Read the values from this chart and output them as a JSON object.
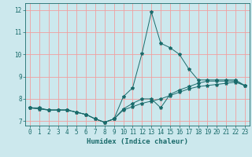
{
  "title": "",
  "xlabel": "Humidex (Indice chaleur)",
  "bg_color": "#cce8ed",
  "grid_color": "#f0a0a0",
  "line_color": "#1a6b6b",
  "xlim": [
    -0.5,
    23.5
  ],
  "ylim": [
    6.8,
    12.3
  ],
  "xticks": [
    0,
    1,
    2,
    3,
    4,
    5,
    6,
    7,
    8,
    9,
    10,
    11,
    12,
    13,
    14,
    15,
    16,
    17,
    18,
    19,
    20,
    21,
    22,
    23
  ],
  "yticks": [
    7,
    8,
    9,
    10,
    11,
    12
  ],
  "line1_x": [
    0,
    1,
    2,
    3,
    4,
    5,
    6,
    7,
    8,
    9,
    10,
    11,
    12,
    13,
    14,
    15,
    16,
    17,
    18,
    19,
    20,
    21,
    22,
    23
  ],
  "line1_y": [
    7.6,
    7.6,
    7.5,
    7.5,
    7.5,
    7.4,
    7.3,
    7.1,
    6.95,
    7.1,
    8.1,
    8.5,
    10.05,
    11.9,
    10.5,
    10.3,
    10.0,
    9.35,
    8.85,
    8.85,
    8.85,
    8.85,
    8.85,
    8.6
  ],
  "line2_x": [
    0,
    1,
    2,
    3,
    4,
    5,
    6,
    7,
    8,
    9,
    10,
    11,
    12,
    13,
    14,
    15,
    16,
    17,
    18,
    19,
    20,
    21,
    22,
    23
  ],
  "line2_y": [
    7.6,
    7.55,
    7.5,
    7.5,
    7.5,
    7.4,
    7.3,
    7.1,
    6.95,
    7.1,
    7.55,
    7.8,
    8.0,
    8.0,
    7.6,
    8.2,
    8.4,
    8.55,
    8.7,
    8.8,
    8.8,
    8.8,
    8.8,
    8.6
  ],
  "line3_x": [
    0,
    1,
    2,
    3,
    4,
    5,
    6,
    7,
    8,
    9,
    10,
    11,
    12,
    13,
    14,
    15,
    16,
    17,
    18,
    19,
    20,
    21,
    22,
    23
  ],
  "line3_y": [
    7.6,
    7.55,
    7.5,
    7.5,
    7.5,
    7.4,
    7.3,
    7.1,
    6.95,
    7.1,
    7.5,
    7.65,
    7.8,
    7.9,
    8.0,
    8.15,
    8.3,
    8.45,
    8.55,
    8.6,
    8.65,
    8.7,
    8.75,
    8.6
  ],
  "tick_fontsize": 5.5,
  "label_fontsize": 6.5
}
